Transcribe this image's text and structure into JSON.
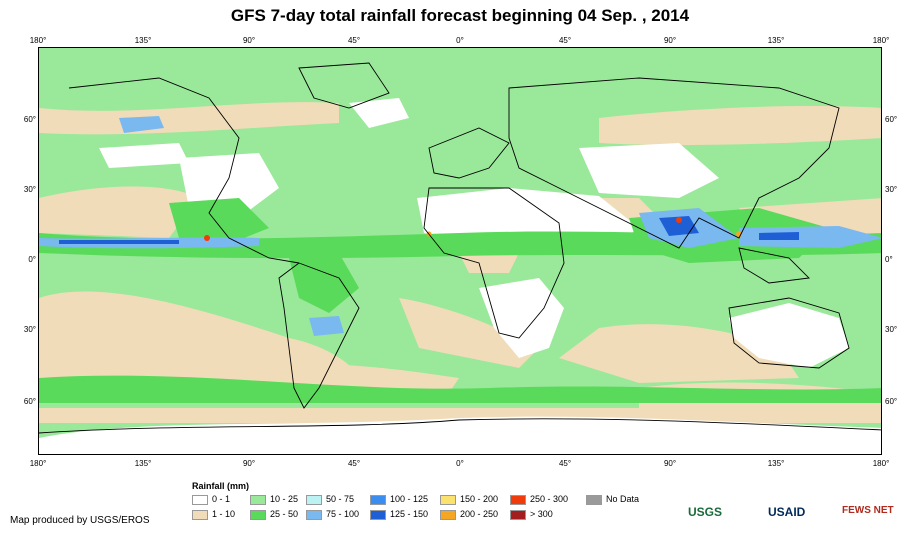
{
  "title": "GFS 7-day total rainfall forecast beginning 04 Sep. , 2014",
  "map": {
    "lon_labels": [
      "180°",
      "135°",
      "90°",
      "45°",
      "0°",
      "45°",
      "90°",
      "135°",
      "180°"
    ],
    "lat_labels": [
      "60°",
      "30°",
      "0°",
      "30°",
      "60°"
    ]
  },
  "legend": {
    "title": "Rainfall (mm)",
    "items": [
      {
        "label": "0 - 1",
        "color": "#ffffff"
      },
      {
        "label": "1 - 10",
        "color": "#f0dcb8"
      },
      {
        "label": "10 - 25",
        "color": "#9ae89a"
      },
      {
        "label": "25 - 50",
        "color": "#5ada5a"
      },
      {
        "label": "50 - 75",
        "color": "#bdf2f5"
      },
      {
        "label": "75 - 100",
        "color": "#7ab8f0"
      },
      {
        "label": "100 - 125",
        "color": "#3b8ef0"
      },
      {
        "label": "125 - 150",
        "color": "#1f5fd6"
      },
      {
        "label": "150 - 200",
        "color": "#fbe26e"
      },
      {
        "label": "200 - 250",
        "color": "#f5a623"
      },
      {
        "label": "250 - 300",
        "color": "#f03c0a"
      },
      {
        "label": "> 300",
        "color": "#a31e1e"
      },
      {
        "label": "No Data",
        "color": "#9a9a9a"
      }
    ]
  },
  "credit": "Map produced by USGS/EROS",
  "logos": [
    "USGS",
    "USAID",
    "FEWS NET"
  ]
}
